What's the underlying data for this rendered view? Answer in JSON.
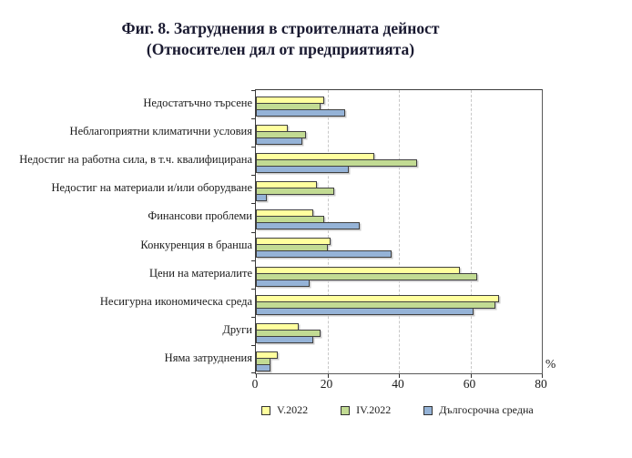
{
  "title": {
    "line1": "Фиг. 8. Затруднения в строителната дейност",
    "line2": "(Относителен дял от предприятията)"
  },
  "axis": {
    "unit_label": "%"
  },
  "colors": {
    "series_v2022": "#FFFF9E",
    "series_iv2022": "#C2DB93",
    "series_longterm": "#95B3D7",
    "bar_border": "#404040",
    "gridline": "#c8c8c8"
  },
  "chart_data": {
    "type": "bar",
    "orientation": "horizontal",
    "title": "Фиг. 8. Затруднения в строителната дейност (Относителен дял от предприятията)",
    "xlabel": "%",
    "ylabel": "",
    "xlim": [
      0,
      80
    ],
    "xticks": [
      0,
      20,
      40,
      60,
      80
    ],
    "grid": "vertical-dashed",
    "legend_position": "bottom",
    "categories": [
      "Недостатъчно търсене",
      "Неблагоприятни климатични условия",
      "Недостиг на работна сила, в т.ч. квалифицирана",
      "Недостиг на материали и/или оборудване",
      "Финансови проблеми",
      "Конкуренция в бранша",
      "Цени на материалите",
      "Несигурна икономическа среда",
      "Други",
      "Няма затруднения"
    ],
    "series": [
      {
        "name": "V.2022",
        "color": "#FFFF9E",
        "values": [
          19,
          9,
          33,
          17,
          16,
          21,
          57,
          68,
          12,
          6
        ]
      },
      {
        "name": "IV.2022",
        "color": "#C2DB93",
        "values": [
          18,
          14,
          45,
          22,
          19,
          20,
          62,
          67,
          18,
          4
        ]
      },
      {
        "name": "Дългосрочна средна",
        "color": "#95B3D7",
        "values": [
          25,
          13,
          26,
          3,
          29,
          38,
          15,
          61,
          16,
          4
        ]
      }
    ]
  }
}
